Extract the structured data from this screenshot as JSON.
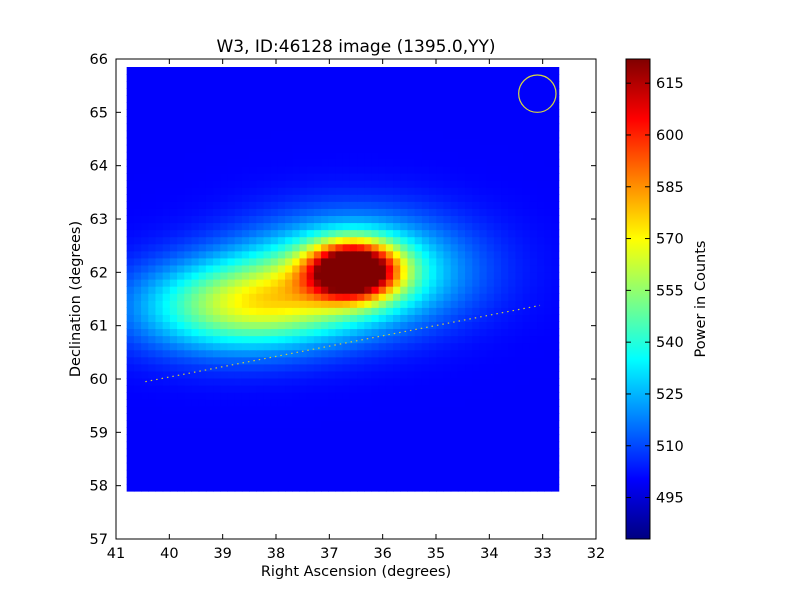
{
  "chart_data": {
    "type": "heatmap",
    "title": "W3, ID:46128 image (1395.0,YY)",
    "xlabel": "Right Ascension (degrees)",
    "ylabel": "Declination (degrees)",
    "xlim": [
      41,
      32
    ],
    "ylim": [
      57,
      66
    ],
    "x_ticks": [
      41,
      40,
      39,
      38,
      37,
      36,
      35,
      34,
      33,
      32
    ],
    "y_ticks": [
      57,
      58,
      59,
      60,
      61,
      62,
      63,
      64,
      65,
      66
    ],
    "image_extent": {
      "ra": [
        40.8,
        32.7
      ],
      "dec": [
        57.9,
        65.85
      ]
    },
    "colorbar": {
      "label": "Power in Counts",
      "range": [
        483,
        622
      ],
      "ticks": [
        495,
        510,
        525,
        540,
        555,
        570,
        585,
        600,
        615
      ],
      "colormap": "jet"
    },
    "background_level": 500,
    "components": [
      {
        "ra": 36.55,
        "dec": 62.05,
        "sigma_ra": 0.55,
        "sigma_dec": 0.35,
        "amplitude": 118
      },
      {
        "ra": 36.5,
        "dec": 62.05,
        "sigma_ra": 1.4,
        "sigma_dec": 0.7,
        "amplitude": 50
      },
      {
        "ra": 38.9,
        "dec": 61.35,
        "sigma_ra": 1.3,
        "sigma_dec": 0.6,
        "amplitude": 45
      },
      {
        "ra": 37.8,
        "dec": 61.5,
        "sigma_ra": 1.2,
        "sigma_dec": 0.55,
        "amplitude": 22
      }
    ],
    "dotted_line": {
      "from": [
        40.45,
        59.95
      ],
      "to": [
        33.05,
        61.38
      ],
      "color": "#cccc44"
    },
    "beam_circle": {
      "ra": 33.1,
      "dec": 65.35,
      "radius_deg": 0.35,
      "color": "#d8d840"
    }
  }
}
